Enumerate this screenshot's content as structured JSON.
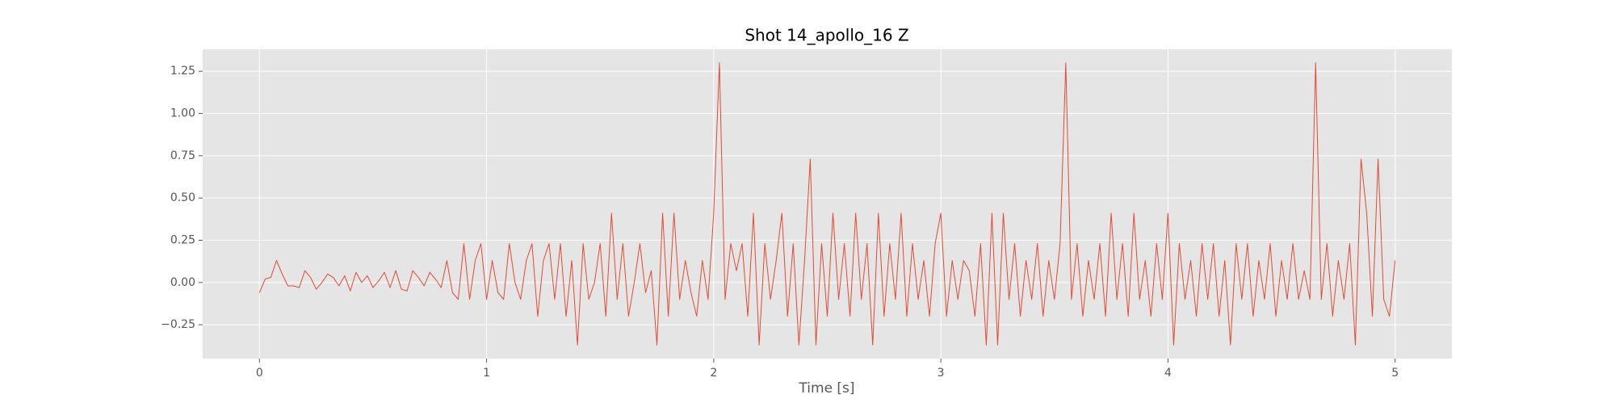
{
  "chart_data": {
    "type": "line",
    "title": "Shot 14_apollo_16 Z",
    "x_label": "Time [s]",
    "x": [
      0,
      0.025,
      0.05,
      0.075,
      0.1,
      0.125,
      0.15,
      0.175,
      0.2,
      0.225,
      0.25,
      0.275,
      0.3,
      0.325,
      0.35,
      0.375,
      0.4,
      0.425,
      0.45,
      0.475,
      0.5,
      0.525,
      0.55,
      0.575,
      0.6,
      0.625,
      0.65,
      0.675,
      0.7,
      0.725,
      0.75,
      0.775,
      0.8,
      0.825,
      0.85,
      0.875,
      0.9,
      0.925,
      0.95,
      0.975,
      1,
      1.025,
      1.05,
      1.075,
      1.1,
      1.125,
      1.15,
      1.175,
      1.2,
      1.225,
      1.25,
      1.275,
      1.3,
      1.325,
      1.35,
      1.375,
      1.4,
      1.425,
      1.45,
      1.475,
      1.5,
      1.525,
      1.55,
      1.575,
      1.6,
      1.625,
      1.65,
      1.675,
      1.7,
      1.725,
      1.75,
      1.775,
      1.8,
      1.825,
      1.85,
      1.875,
      1.9,
      1.925,
      1.95,
      1.975,
      2,
      2.025,
      2.05,
      2.075,
      2.1,
      2.125,
      2.15,
      2.175,
      2.2,
      2.225,
      2.25,
      2.275,
      2.3,
      2.325,
      2.35,
      2.375,
      2.4,
      2.425,
      2.45,
      2.475,
      2.5,
      2.525,
      2.55,
      2.575,
      2.6,
      2.625,
      2.65,
      2.675,
      2.7,
      2.725,
      2.75,
      2.775,
      2.8,
      2.825,
      2.85,
      2.875,
      2.9,
      2.925,
      2.95,
      2.975,
      3,
      3.025,
      3.05,
      3.075,
      3.1,
      3.125,
      3.15,
      3.175,
      3.2,
      3.225,
      3.25,
      3.275,
      3.3,
      3.325,
      3.35,
      3.375,
      3.4,
      3.425,
      3.45,
      3.475,
      3.5,
      3.525,
      3.55,
      3.575,
      3.6,
      3.625,
      3.65,
      3.675,
      3.7,
      3.725,
      3.75,
      3.775,
      3.8,
      3.825,
      3.85,
      3.875,
      3.9,
      3.925,
      3.95,
      3.975,
      4,
      4.025,
      4.05,
      4.075,
      4.1,
      4.125,
      4.15,
      4.175,
      4.2,
      4.225,
      4.25,
      4.275,
      4.3,
      4.325,
      4.35,
      4.375,
      4.4,
      4.425,
      4.45,
      4.475,
      4.5,
      4.525,
      4.55,
      4.575,
      4.6,
      4.625,
      4.65,
      4.675,
      4.7,
      4.725,
      4.75,
      4.775,
      4.8,
      4.825,
      4.85,
      4.875,
      4.9,
      4.925,
      4.95,
      4.975,
      5
    ],
    "values": [
      -0.06,
      0.02,
      0.03,
      0.13,
      0.05,
      -0.02,
      -0.02,
      -0.03,
      0.07,
      0.03,
      -0.04,
      0.0,
      0.05,
      0.03,
      -0.02,
      0.04,
      -0.05,
      0.06,
      0.0,
      0.04,
      -0.03,
      0.01,
      0.06,
      -0.03,
      0.07,
      -0.04,
      -0.05,
      0.07,
      0.03,
      -0.02,
      0.06,
      0.02,
      -0.03,
      0.13,
      -0.06,
      -0.1,
      0.23,
      -0.1,
      0.13,
      0.23,
      -0.1,
      0.13,
      -0.06,
      -0.1,
      0.23,
      0.0,
      -0.1,
      0.13,
      0.23,
      -0.2,
      0.13,
      0.23,
      -0.1,
      0.23,
      -0.2,
      0.13,
      -0.37,
      0.23,
      -0.1,
      0.0,
      0.23,
      -0.2,
      0.41,
      -0.1,
      0.23,
      -0.2,
      0.0,
      0.23,
      -0.06,
      0.07,
      -0.37,
      0.41,
      -0.2,
      0.41,
      -0.1,
      0.13,
      -0.06,
      -0.2,
      0.13,
      -0.1,
      0.41,
      1.3,
      -0.1,
      0.23,
      0.07,
      0.23,
      -0.2,
      0.41,
      -0.37,
      0.23,
      -0.1,
      0.13,
      0.41,
      -0.2,
      0.23,
      -0.37,
      0.13,
      0.73,
      -0.37,
      0.23,
      -0.2,
      0.41,
      -0.1,
      0.23,
      -0.2,
      0.41,
      -0.1,
      0.23,
      -0.37,
      0.41,
      -0.2,
      0.23,
      -0.1,
      0.41,
      -0.2,
      0.23,
      -0.1,
      0.13,
      -0.2,
      0.23,
      0.41,
      -0.2,
      0.13,
      -0.1,
      0.13,
      0.07,
      -0.2,
      0.23,
      -0.37,
      0.41,
      -0.37,
      0.41,
      -0.1,
      0.23,
      -0.2,
      0.13,
      -0.1,
      0.23,
      -0.2,
      0.13,
      -0.1,
      0.23,
      1.3,
      -0.1,
      0.23,
      -0.2,
      0.13,
      -0.1,
      0.23,
      -0.2,
      0.41,
      -0.1,
      0.23,
      -0.2,
      0.41,
      -0.1,
      0.13,
      -0.2,
      0.23,
      -0.1,
      0.41,
      -0.37,
      0.23,
      -0.1,
      0.13,
      -0.2,
      0.23,
      -0.1,
      0.23,
      -0.2,
      0.13,
      -0.37,
      0.23,
      -0.1,
      0.23,
      -0.2,
      0.13,
      -0.1,
      0.23,
      -0.2,
      0.13,
      -0.1,
      0.23,
      -0.1,
      0.07,
      -0.1,
      1.3,
      -0.1,
      0.23,
      -0.2,
      0.13,
      -0.1,
      0.23,
      -0.37,
      0.73,
      0.41,
      -0.2,
      0.73,
      -0.1,
      -0.2,
      0.13
    ],
    "color": "#e24a33",
    "xlim": [
      -0.25,
      5.25
    ],
    "xticks": [
      0,
      1,
      2,
      3,
      4,
      5
    ],
    "ylim": [
      -0.45,
      1.38
    ],
    "yticks": [
      {
        "value": -0.25,
        "label": "−0.25"
      },
      {
        "value": 0,
        "label": "0.00"
      },
      {
        "value": 0.25,
        "label": "0.25"
      },
      {
        "value": 0.5,
        "label": "0.50"
      },
      {
        "value": 0.75,
        "label": "0.75"
      },
      {
        "value": 1,
        "label": "1.00"
      },
      {
        "value": 1.25,
        "label": "1.25"
      }
    ],
    "grid": true
  }
}
